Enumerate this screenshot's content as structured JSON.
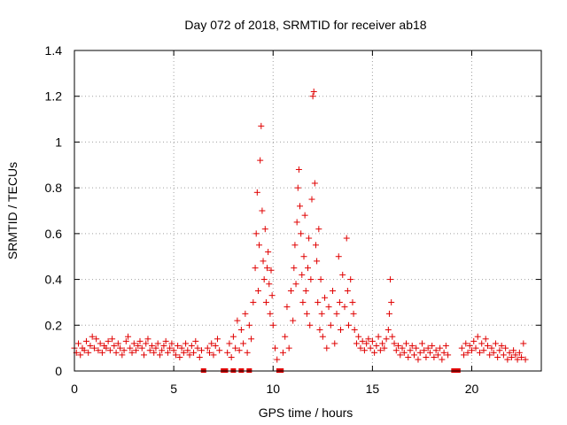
{
  "chart_data": {
    "type": "scatter",
    "title": "Day 072 of 2018, SRMTID for receiver ab18",
    "xlabel": "GPS time / hours",
    "ylabel": "SRMTID / TECUs",
    "xlim": [
      0,
      23.5
    ],
    "ylim": [
      0,
      1.4
    ],
    "xticks": [
      0,
      5,
      10,
      15,
      20
    ],
    "yticks": [
      0,
      0.2,
      0.4,
      0.6,
      0.8,
      1,
      1.2,
      1.4
    ],
    "xtick_labels": [
      "0",
      "5",
      "10",
      "15",
      "20"
    ],
    "ytick_labels": [
      "0",
      "0.2",
      "0.4",
      "0.6",
      "0.8",
      "1",
      "1.2",
      "1.4"
    ],
    "grid": true,
    "series": [
      {
        "name": "SRMTID",
        "color": "#e00000",
        "marker": "plus",
        "points": [
          [
            0.0,
            0.1
          ],
          [
            0.1,
            0.08
          ],
          [
            0.2,
            0.12
          ],
          [
            0.3,
            0.07
          ],
          [
            0.4,
            0.1
          ],
          [
            0.5,
            0.09
          ],
          [
            0.6,
            0.13
          ],
          [
            0.7,
            0.08
          ],
          [
            0.8,
            0.11
          ],
          [
            0.9,
            0.15
          ],
          [
            1.0,
            0.1
          ],
          [
            1.1,
            0.14
          ],
          [
            1.2,
            0.09
          ],
          [
            1.3,
            0.12
          ],
          [
            1.4,
            0.08
          ],
          [
            1.5,
            0.11
          ],
          [
            1.6,
            0.1
          ],
          [
            1.7,
            0.13
          ],
          [
            1.8,
            0.09
          ],
          [
            1.9,
            0.14
          ],
          [
            2.0,
            0.11
          ],
          [
            2.1,
            0.08
          ],
          [
            2.2,
            0.12
          ],
          [
            2.3,
            0.1
          ],
          [
            2.4,
            0.07
          ],
          [
            2.5,
            0.09
          ],
          [
            2.6,
            0.13
          ],
          [
            2.7,
            0.15
          ],
          [
            2.8,
            0.1
          ],
          [
            2.9,
            0.08
          ],
          [
            3.0,
            0.12
          ],
          [
            3.1,
            0.09
          ],
          [
            3.2,
            0.11
          ],
          [
            3.3,
            0.13
          ],
          [
            3.4,
            0.1
          ],
          [
            3.5,
            0.07
          ],
          [
            3.6,
            0.12
          ],
          [
            3.7,
            0.14
          ],
          [
            3.8,
            0.09
          ],
          [
            3.9,
            0.11
          ],
          [
            4.0,
            0.08
          ],
          [
            4.1,
            0.1
          ],
          [
            4.2,
            0.12
          ],
          [
            4.3,
            0.07
          ],
          [
            4.4,
            0.09
          ],
          [
            4.5,
            0.11
          ],
          [
            4.6,
            0.13
          ],
          [
            4.7,
            0.08
          ],
          [
            4.8,
            0.1
          ],
          [
            4.9,
            0.12
          ],
          [
            5.0,
            0.09
          ],
          [
            5.1,
            0.07
          ],
          [
            5.2,
            0.11
          ],
          [
            5.3,
            0.06
          ],
          [
            5.4,
            0.1
          ],
          [
            5.5,
            0.08
          ],
          [
            5.6,
            0.12
          ],
          [
            5.7,
            0.09
          ],
          [
            5.8,
            0.07
          ],
          [
            5.9,
            0.11
          ],
          [
            6.0,
            0.08
          ],
          [
            6.1,
            0.13
          ],
          [
            6.2,
            0.1
          ],
          [
            6.3,
            0.06
          ],
          [
            6.4,
            0.09
          ],
          [
            6.7,
            0.1
          ],
          [
            6.8,
            0.08
          ],
          [
            6.9,
            0.12
          ],
          [
            7.0,
            0.07
          ],
          [
            7.1,
            0.11
          ],
          [
            7.2,
            0.14
          ],
          [
            7.3,
            0.09
          ],
          [
            7.7,
            0.08
          ],
          [
            7.8,
            0.12
          ],
          [
            7.9,
            0.06
          ],
          [
            8.0,
            0.15
          ],
          [
            8.1,
            0.1
          ],
          [
            8.2,
            0.22
          ],
          [
            8.3,
            0.09
          ],
          [
            8.4,
            0.18
          ],
          [
            8.5,
            0.12
          ],
          [
            8.6,
            0.25
          ],
          [
            8.7,
            0.08
          ],
          [
            8.8,
            0.2
          ],
          [
            8.9,
            0.14
          ],
          [
            9.0,
            0.3
          ],
          [
            9.1,
            0.45
          ],
          [
            9.15,
            0.6
          ],
          [
            9.2,
            0.78
          ],
          [
            9.25,
            0.35
          ],
          [
            9.3,
            0.55
          ],
          [
            9.35,
            0.92
          ],
          [
            9.4,
            1.07
          ],
          [
            9.45,
            0.7
          ],
          [
            9.5,
            0.48
          ],
          [
            9.55,
            0.4
          ],
          [
            9.6,
            0.62
          ],
          [
            9.65,
            0.3
          ],
          [
            9.7,
            0.45
          ],
          [
            9.75,
            0.52
          ],
          [
            9.8,
            0.38
          ],
          [
            9.85,
            0.25
          ],
          [
            9.9,
            0.44
          ],
          [
            9.95,
            0.33
          ],
          [
            10.0,
            0.2
          ],
          [
            10.1,
            0.1
          ],
          [
            10.2,
            0.05
          ],
          [
            10.5,
            0.08
          ],
          [
            10.6,
            0.15
          ],
          [
            10.7,
            0.28
          ],
          [
            10.8,
            0.1
          ],
          [
            10.9,
            0.35
          ],
          [
            11.0,
            0.22
          ],
          [
            11.05,
            0.45
          ],
          [
            11.1,
            0.55
          ],
          [
            11.15,
            0.38
          ],
          [
            11.2,
            0.65
          ],
          [
            11.25,
            0.8
          ],
          [
            11.3,
            0.88
          ],
          [
            11.35,
            0.72
          ],
          [
            11.4,
            0.6
          ],
          [
            11.45,
            0.42
          ],
          [
            11.5,
            0.3
          ],
          [
            11.55,
            0.5
          ],
          [
            11.6,
            0.68
          ],
          [
            11.65,
            0.35
          ],
          [
            11.7,
            0.25
          ],
          [
            11.75,
            0.45
          ],
          [
            11.8,
            0.58
          ],
          [
            11.85,
            0.2
          ],
          [
            11.9,
            0.4
          ],
          [
            11.95,
            0.75
          ],
          [
            12.0,
            1.2
          ],
          [
            12.05,
            1.22
          ],
          [
            12.1,
            0.82
          ],
          [
            12.15,
            0.55
          ],
          [
            12.2,
            0.48
          ],
          [
            12.25,
            0.3
          ],
          [
            12.3,
            0.62
          ],
          [
            12.35,
            0.18
          ],
          [
            12.4,
            0.4
          ],
          [
            12.45,
            0.25
          ],
          [
            12.5,
            0.15
          ],
          [
            12.6,
            0.32
          ],
          [
            12.7,
            0.1
          ],
          [
            12.8,
            0.28
          ],
          [
            12.9,
            0.2
          ],
          [
            13.0,
            0.35
          ],
          [
            13.1,
            0.12
          ],
          [
            13.2,
            0.25
          ],
          [
            13.3,
            0.5
          ],
          [
            13.35,
            0.3
          ],
          [
            13.4,
            0.18
          ],
          [
            13.5,
            0.42
          ],
          [
            13.6,
            0.28
          ],
          [
            13.7,
            0.58
          ],
          [
            13.75,
            0.35
          ],
          [
            13.8,
            0.2
          ],
          [
            13.9,
            0.4
          ],
          [
            14.0,
            0.3
          ],
          [
            14.05,
            0.25
          ],
          [
            14.1,
            0.18
          ],
          [
            14.2,
            0.12
          ],
          [
            14.3,
            0.15
          ],
          [
            14.4,
            0.1
          ],
          [
            14.5,
            0.13
          ],
          [
            14.6,
            0.09
          ],
          [
            14.7,
            0.12
          ],
          [
            14.8,
            0.14
          ],
          [
            14.9,
            0.1
          ],
          [
            15.0,
            0.13
          ],
          [
            15.1,
            0.08
          ],
          [
            15.2,
            0.11
          ],
          [
            15.3,
            0.15
          ],
          [
            15.4,
            0.09
          ],
          [
            15.5,
            0.12
          ],
          [
            15.6,
            0.1
          ],
          [
            15.7,
            0.14
          ],
          [
            15.8,
            0.18
          ],
          [
            15.85,
            0.25
          ],
          [
            15.9,
            0.4
          ],
          [
            15.95,
            0.3
          ],
          [
            16.0,
            0.15
          ],
          [
            16.1,
            0.12
          ],
          [
            16.2,
            0.09
          ],
          [
            16.3,
            0.11
          ],
          [
            16.4,
            0.07
          ],
          [
            16.5,
            0.1
          ],
          [
            16.6,
            0.08
          ],
          [
            16.7,
            0.12
          ],
          [
            16.8,
            0.06
          ],
          [
            16.9,
            0.09
          ],
          [
            17.0,
            0.11
          ],
          [
            17.1,
            0.07
          ],
          [
            17.2,
            0.1
          ],
          [
            17.3,
            0.05
          ],
          [
            17.4,
            0.08
          ],
          [
            17.5,
            0.12
          ],
          [
            17.6,
            0.09
          ],
          [
            17.7,
            0.06
          ],
          [
            17.8,
            0.1
          ],
          [
            17.9,
            0.08
          ],
          [
            18.0,
            0.11
          ],
          [
            18.1,
            0.06
          ],
          [
            18.2,
            0.09
          ],
          [
            18.3,
            0.07
          ],
          [
            18.4,
            0.1
          ],
          [
            18.5,
            0.05
          ],
          [
            18.6,
            0.08
          ],
          [
            18.7,
            0.11
          ],
          [
            18.8,
            0.07
          ],
          [
            19.5,
            0.1
          ],
          [
            19.6,
            0.07
          ],
          [
            19.7,
            0.12
          ],
          [
            19.8,
            0.08
          ],
          [
            19.9,
            0.11
          ],
          [
            20.0,
            0.09
          ],
          [
            20.1,
            0.13
          ],
          [
            20.2,
            0.1
          ],
          [
            20.3,
            0.15
          ],
          [
            20.4,
            0.08
          ],
          [
            20.5,
            0.12
          ],
          [
            20.6,
            0.09
          ],
          [
            20.7,
            0.14
          ],
          [
            20.8,
            0.11
          ],
          [
            20.9,
            0.07
          ],
          [
            21.0,
            0.1
          ],
          [
            21.1,
            0.08
          ],
          [
            21.2,
            0.12
          ],
          [
            21.3,
            0.06
          ],
          [
            21.4,
            0.09
          ],
          [
            21.5,
            0.11
          ],
          [
            21.6,
            0.07
          ],
          [
            21.7,
            0.1
          ],
          [
            21.8,
            0.05
          ],
          [
            21.9,
            0.08
          ],
          [
            22.0,
            0.06
          ],
          [
            22.1,
            0.09
          ],
          [
            22.2,
            0.07
          ],
          [
            22.3,
            0.05
          ],
          [
            22.4,
            0.08
          ],
          [
            22.5,
            0.06
          ],
          [
            22.6,
            0.12
          ],
          [
            22.7,
            0.05
          ]
        ]
      }
    ],
    "zero_markers": [
      6.5,
      7.5,
      7.6,
      8.0,
      8.4,
      8.8,
      10.3,
      10.4,
      19.1,
      19.3
    ]
  }
}
